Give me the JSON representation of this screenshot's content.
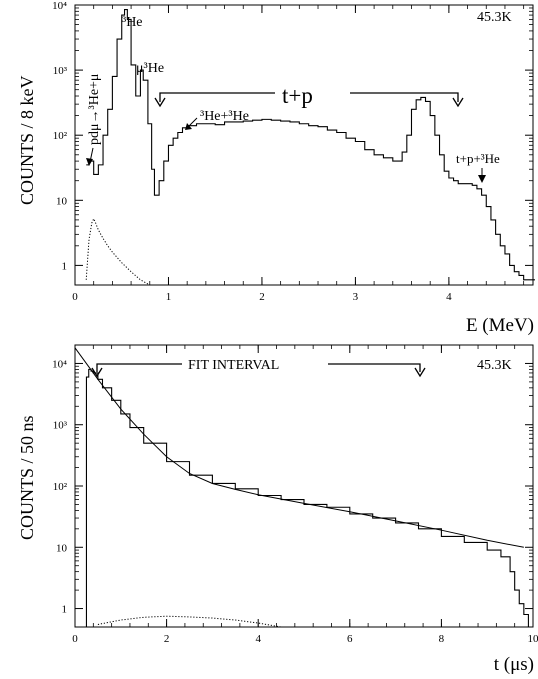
{
  "chart_data": [
    {
      "type": "line",
      "panel": "energy-spectrum",
      "ylabel": "COUNTS / 8 keV",
      "xlabel": "E (MeV)",
      "temperature_label": "45.3K",
      "y_scale": "log",
      "xlim": [
        0,
        4.9
      ],
      "ylim": [
        0.5,
        10000
      ],
      "x_ticks": [
        0,
        1,
        2,
        3,
        4
      ],
      "x_tick_labels": [
        "0",
        "1",
        "2",
        "3",
        "4"
      ],
      "y_ticks": [
        1,
        10,
        100,
        1000,
        10000
      ],
      "y_tick_labels": [
        "1",
        "10",
        "10²",
        "10³",
        "10⁴"
      ],
      "grid": false,
      "series": [
        {
          "style": "solid-histogram",
          "x": [
            0.12,
            0.15,
            0.2,
            0.25,
            0.3,
            0.35,
            0.4,
            0.45,
            0.5,
            0.53,
            0.56,
            0.6,
            0.65,
            0.7,
            0.73,
            0.78,
            0.82,
            0.85,
            0.9,
            0.95,
            1.0,
            1.05,
            1.1,
            1.15,
            1.2,
            1.3,
            1.4,
            1.5,
            1.6,
            1.7,
            1.8,
            1.9,
            2.0,
            2.1,
            2.2,
            2.3,
            2.4,
            2.5,
            2.6,
            2.7,
            2.8,
            2.9,
            3.0,
            3.1,
            3.2,
            3.3,
            3.4,
            3.5,
            3.55,
            3.6,
            3.65,
            3.7,
            3.75,
            3.8,
            3.85,
            3.9,
            3.95,
            4.0,
            4.05,
            4.1,
            4.2,
            4.25,
            4.3,
            4.35,
            4.4,
            4.45,
            4.5,
            4.55,
            4.6,
            4.65,
            4.7,
            4.75,
            4.8,
            4.85,
            4.9
          ],
          "y": [
            35,
            40,
            25,
            35,
            100,
            250,
            800,
            3000,
            7000,
            8500,
            6000,
            1200,
            400,
            1000,
            700,
            150,
            30,
            12,
            20,
            40,
            70,
            90,
            110,
            130,
            140,
            150,
            150,
            145,
            160,
            160,
            165,
            170,
            175,
            170,
            165,
            160,
            150,
            140,
            135,
            120,
            110,
            90,
            80,
            60,
            50,
            45,
            40,
            55,
            100,
            250,
            350,
            380,
            330,
            200,
            100,
            50,
            28,
            22,
            20,
            18,
            18,
            17,
            15,
            12,
            8,
            5,
            3,
            2,
            1.5,
            1,
            0.8,
            0.7,
            0.6,
            0.6,
            0.6
          ]
        },
        {
          "style": "dotted",
          "x": [
            0.12,
            0.15,
            0.18,
            0.2,
            0.22,
            0.25,
            0.3,
            0.35,
            0.4,
            0.5,
            0.6,
            0.7,
            0.8
          ],
          "y": [
            0.6,
            2.5,
            4.5,
            5.2,
            4.5,
            3.5,
            2.6,
            2.0,
            1.6,
            1.1,
            0.8,
            0.6,
            0.5
          ]
        }
      ],
      "annotations": [
        {
          "text": "³He",
          "x": 0.53,
          "y": 9000
        },
        {
          "text": "μ³He",
          "x": 0.72,
          "y": 1100
        },
        {
          "text": "³He+³He",
          "x": 1.15,
          "y": 150
        },
        {
          "text": "t+p",
          "x": 2.4,
          "y": 1000,
          "bracket_x": [
            0.9,
            4.0
          ]
        },
        {
          "text": "t+p+³He",
          "x": 4.2,
          "y": 18
        },
        {
          "text": "pdμ→³He+μ",
          "x": 0.18,
          "y": 40
        }
      ]
    },
    {
      "type": "line",
      "panel": "time-spectrum",
      "ylabel": "COUNTS / 50 ns",
      "xlabel": "t (μs)",
      "temperature_label": "45.3K",
      "y_scale": "log",
      "xlim": [
        0,
        10
      ],
      "ylim": [
        0.5,
        20000
      ],
      "x_ticks": [
        0,
        2,
        4,
        6,
        8,
        10
      ],
      "x_tick_labels": [
        "0",
        "2",
        "4",
        "6",
        "8",
        "10"
      ],
      "y_ticks": [
        1,
        10,
        100,
        1000,
        10000
      ],
      "y_tick_labels": [
        "1",
        "10",
        "10²",
        "10³",
        "10⁴"
      ],
      "grid": false,
      "series": [
        {
          "style": "solid-histogram",
          "x": [
            0.2,
            0.25,
            0.3,
            0.35,
            0.4,
            0.5,
            0.6,
            0.8,
            1.0,
            1.2,
            1.5,
            2.0,
            2.5,
            3.0,
            3.5,
            4.0,
            4.5,
            5.0,
            5.5,
            6.0,
            6.5,
            7.0,
            7.5,
            8.0,
            8.5,
            9.0,
            9.3,
            9.5,
            9.6,
            9.7,
            9.8,
            9.9
          ],
          "y": [
            0.5,
            6000,
            8000,
            7500,
            7000,
            5500,
            4000,
            2500,
            1500,
            900,
            500,
            250,
            150,
            110,
            90,
            70,
            60,
            50,
            45,
            35,
            30,
            25,
            20,
            15,
            12,
            9,
            7,
            4,
            2,
            1.2,
            0.8,
            0.5
          ]
        },
        {
          "style": "fit-line",
          "x": [
            0.0,
            0.5,
            1.0,
            1.5,
            2.0,
            2.5,
            3.0,
            3.5,
            4.0,
            5.0,
            6.0,
            7.0,
            8.0,
            9.0,
            9.8
          ],
          "y": [
            18000,
            5500,
            1800,
            700,
            300,
            160,
            110,
            88,
            72,
            52,
            38,
            27,
            19,
            13,
            10
          ]
        },
        {
          "style": "dotted",
          "x": [
            0.5,
            1.0,
            1.5,
            2.0,
            2.5,
            3.0,
            3.5,
            4.0,
            4.5
          ],
          "y": [
            0.55,
            0.65,
            0.72,
            0.75,
            0.73,
            0.7,
            0.65,
            0.58,
            0.5
          ]
        }
      ],
      "annotations": [
        {
          "text": "FIT INTERVAL",
          "x": 2.8,
          "y": 14000,
          "bracket_x": [
            0.5,
            7.6
          ]
        }
      ]
    }
  ]
}
